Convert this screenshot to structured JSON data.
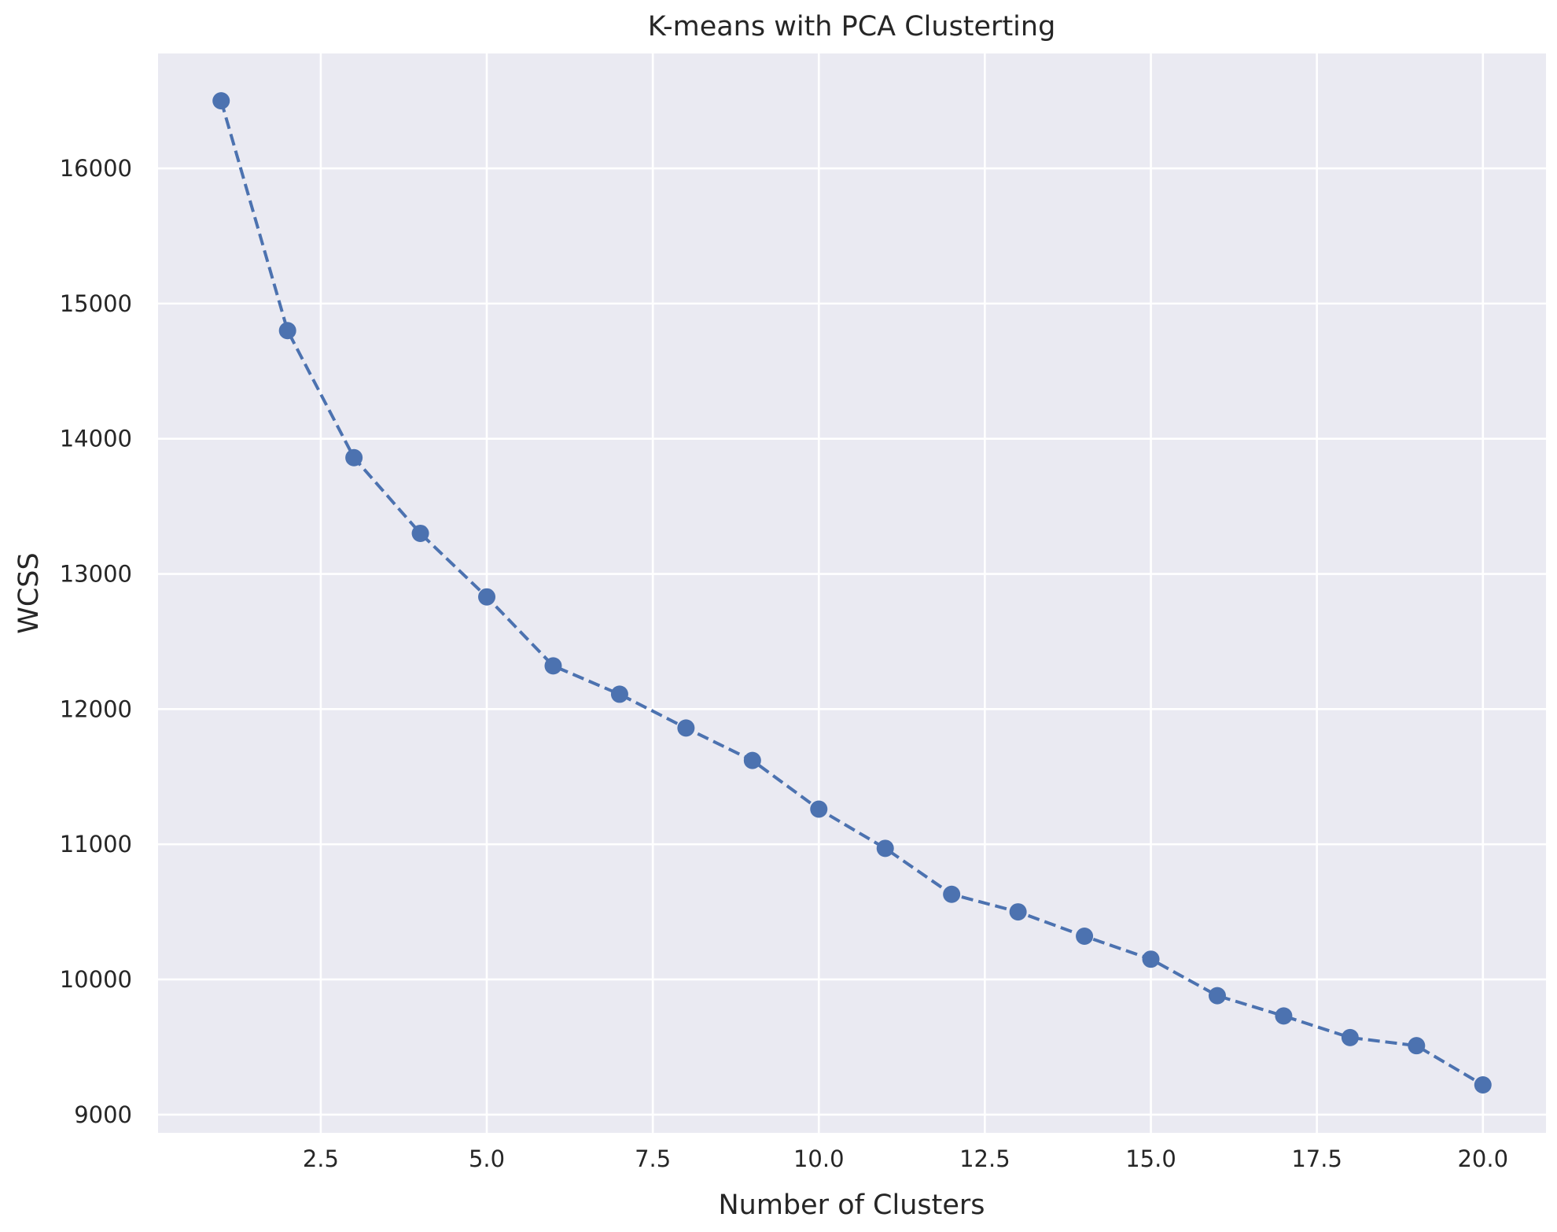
{
  "chart_data": {
    "type": "line",
    "title": "K-means with PCA Clusterting",
    "xlabel": "Number of Clusters",
    "ylabel": "WCSS",
    "x": [
      1,
      2,
      3,
      4,
      5,
      6,
      7,
      8,
      9,
      10,
      11,
      12,
      13,
      14,
      15,
      16,
      17,
      18,
      19,
      20
    ],
    "series": [
      {
        "values": [
          16500,
          14800,
          13860,
          13300,
          12830,
          12320,
          12110,
          11860,
          11620,
          11260,
          10970,
          10630,
          10500,
          10320,
          10150,
          9880,
          9730,
          9570,
          9510,
          9220
        ],
        "color": "#4c72b0",
        "line_style": "dashed",
        "marker": "circle"
      }
    ],
    "xlim": [
      0.05,
      20.95
    ],
    "ylim": [
      8865,
      16850
    ],
    "x_ticks": [
      2.5,
      5.0,
      7.5,
      10.0,
      12.5,
      15.0,
      17.5,
      20.0
    ],
    "x_tick_labels": [
      "2.5",
      "5.0",
      "7.5",
      "10.0",
      "12.5",
      "15.0",
      "17.5",
      "20.0"
    ],
    "y_ticks": [
      9000,
      10000,
      11000,
      12000,
      13000,
      14000,
      15000,
      16000
    ],
    "y_tick_labels": [
      "9000",
      "10000",
      "11000",
      "12000",
      "13000",
      "14000",
      "15000",
      "16000"
    ],
    "grid": true,
    "background_color": "#eaeaf2",
    "legend": "none"
  }
}
